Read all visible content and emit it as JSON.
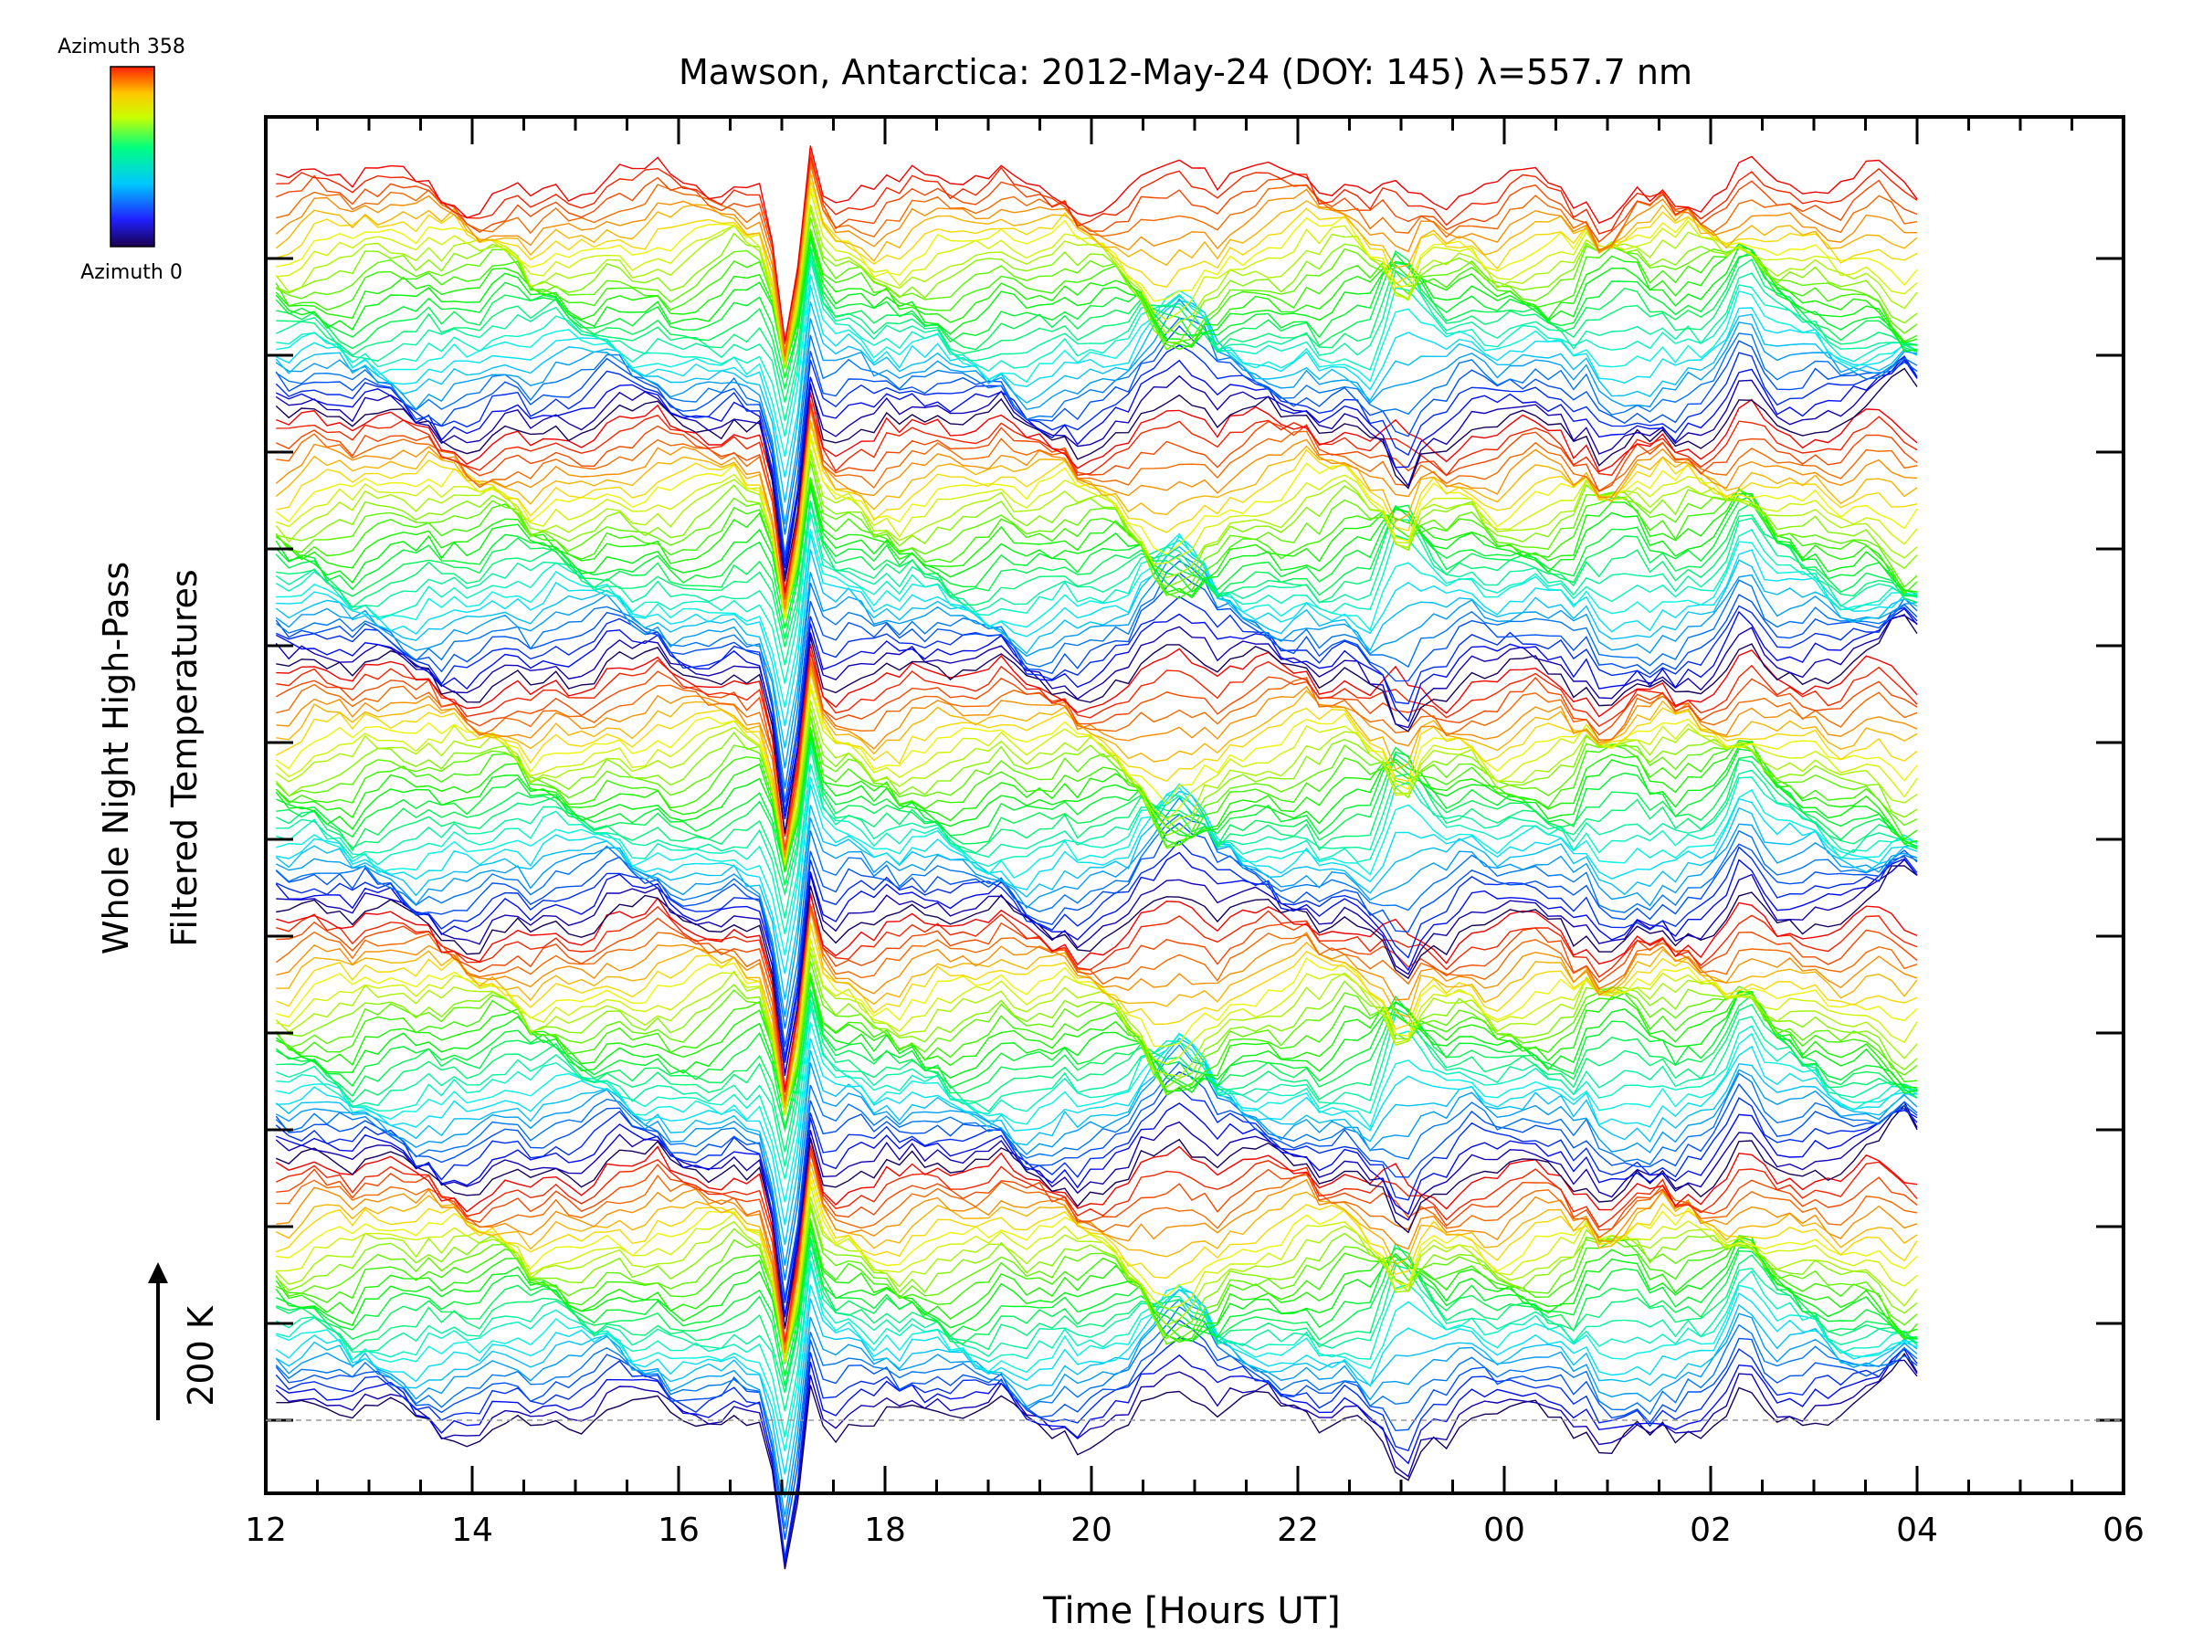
{
  "chart_data": {
    "type": "line",
    "title": "Mawson, Antarctica: 2012-May-24 (DOY: 145) λ=557.7 nm",
    "xlabel": "Time [Hours UT]",
    "ylabel_line1": "Whole Night High-Pass",
    "ylabel_line2": "Filtered Temperatures",
    "scale_label": "200 K",
    "colorbar_top": "Azimuth 358",
    "colorbar_bottom": "Azimuth 0",
    "xlim": [
      12,
      30
    ],
    "x_tick_labels": [
      "12",
      "14",
      "16",
      "18",
      "20",
      "22",
      "00",
      "02",
      "04",
      "06"
    ],
    "data_x_range": [
      12.1,
      28.0
    ],
    "azimuth_range": [
      0,
      358
    ],
    "traces_per_cycle": 30,
    "cycles": 5,
    "events": [
      {
        "time": 17.05,
        "amplitude_K": -140,
        "note": "strong negative excursion at all azimuths"
      },
      {
        "time": 17.3,
        "amplitude_K": 60
      },
      {
        "time": 20.8,
        "amplitude_K": 55
      },
      {
        "time": 23.0,
        "amplitude_K": -50
      },
      {
        "time": 25.0,
        "amplitude_K": -40
      },
      {
        "time": 26.3,
        "amplitude_K": 60
      },
      {
        "time": 27.9,
        "amplitude_K": 45
      }
    ]
  }
}
